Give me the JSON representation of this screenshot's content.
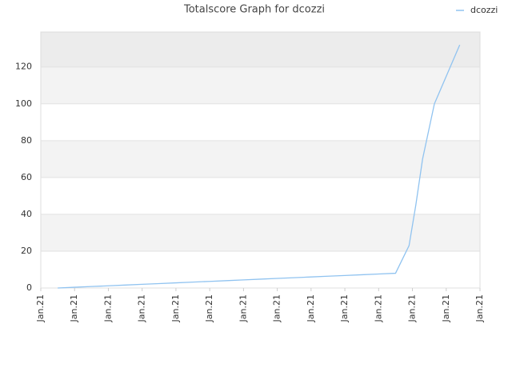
{
  "chart_data": {
    "type": "line",
    "title": "Totalscore Graph for dcozzi",
    "xlim": [
      0,
      13
    ],
    "xticks": [
      {
        "value": 0,
        "label": "Jan.21"
      },
      {
        "value": 1,
        "label": "Jan.21"
      },
      {
        "value": 2,
        "label": "Jan.21"
      },
      {
        "value": 3,
        "label": "Jan.21"
      },
      {
        "value": 4,
        "label": "Jan.21"
      },
      {
        "value": 5,
        "label": "Jan.21"
      },
      {
        "value": 6,
        "label": "Jan.21"
      },
      {
        "value": 7,
        "label": "Jan.21"
      },
      {
        "value": 8,
        "label": "Jan.21"
      },
      {
        "value": 9,
        "label": "Jan.21"
      },
      {
        "value": 10,
        "label": "Jan.21"
      },
      {
        "value": 11,
        "label": "Jan.21"
      },
      {
        "value": 12,
        "label": "Jan.21"
      },
      {
        "value": 13,
        "label": "Jan.21"
      }
    ],
    "ylim": [
      0,
      139
    ],
    "yticks": [
      0,
      20,
      40,
      60,
      80,
      100,
      120
    ],
    "grid": true,
    "legend": "top-right",
    "x": [
      0.5,
      1.0,
      1.5,
      2.0,
      2.5,
      3.0,
      3.5,
      4.0,
      4.5,
      5.0,
      5.5,
      6.0,
      6.5,
      7.0,
      7.5,
      8.0,
      8.5,
      9.0,
      9.5,
      10.0,
      10.5,
      10.9,
      11.1,
      11.3,
      11.65,
      12.4
    ],
    "series": [
      {
        "name": "dcozzi",
        "color": "#90c3f0",
        "values": [
          0,
          0.4,
          0.8,
          1.2,
          1.6,
          2,
          2.4,
          2.8,
          3.2,
          3.6,
          4,
          4.4,
          4.8,
          5.2,
          5.6,
          6,
          6.4,
          6.8,
          7.2,
          7.6,
          8,
          23,
          45,
          70,
          100,
          132
        ]
      }
    ]
  }
}
